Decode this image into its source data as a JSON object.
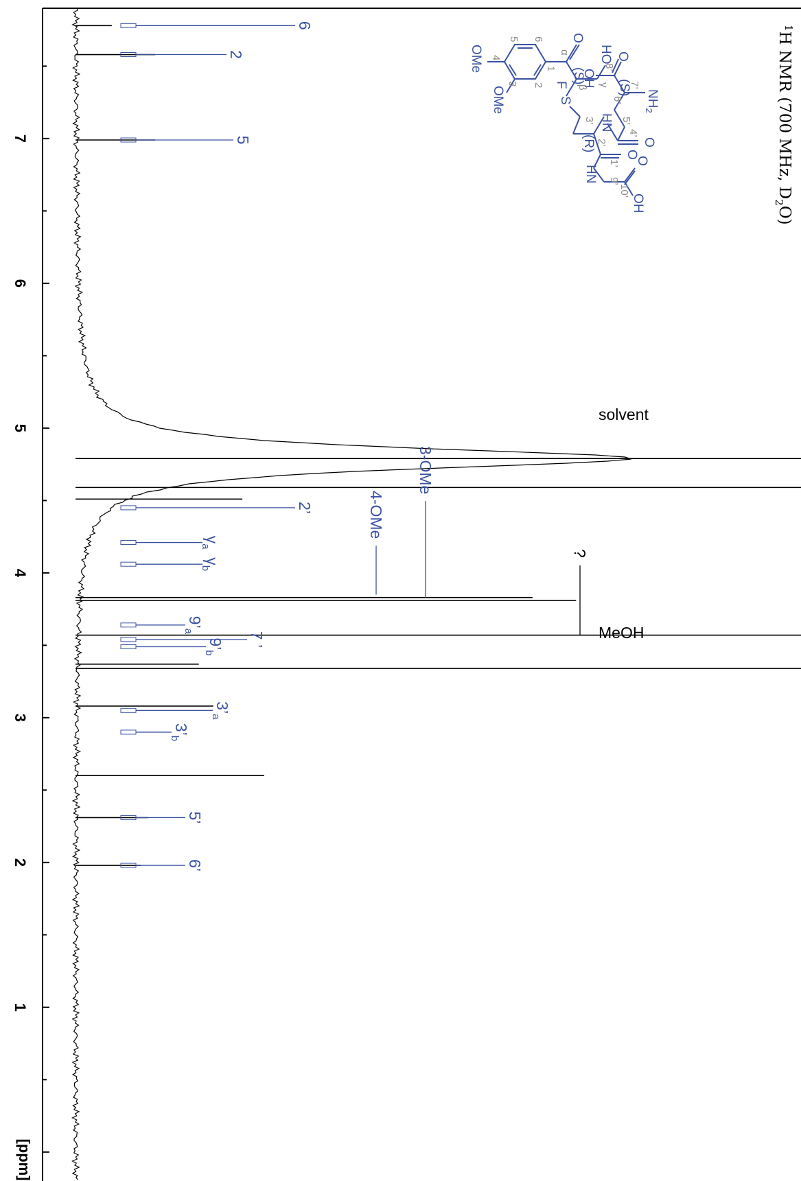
{
  "chart_data": {
    "type": "line",
    "title_main": "H NMR (700 MHz, D",
    "title_sup": "1",
    "title_sub": "2",
    "title_end": "O)",
    "x_unit_label": "[ppm]",
    "x_range": [
      7.9,
      -0.2
    ],
    "x_ticks": [
      "7",
      "6",
      "5",
      "4",
      "3",
      "2",
      "1"
    ],
    "x_tick_values": [
      7,
      6,
      5,
      4,
      3,
      2,
      1
    ],
    "spectrum_color": "#000000",
    "annotation_color": "#3a52a3",
    "solvent_peaks": [
      {
        "label": "solvent",
        "ppm": 4.79,
        "relative_height": 1.0
      },
      {
        "label": "MeOH",
        "ppm": 3.34,
        "relative_height": 1.0
      }
    ],
    "peaks": [
      {
        "ppm": 7.78,
        "relative_height": 0.05
      },
      {
        "ppm": 7.58,
        "relative_height": 0.11
      },
      {
        "ppm": 6.99,
        "relative_height": 0.11
      },
      {
        "ppm": 4.59,
        "relative_height": 1.0
      },
      {
        "ppm": 4.51,
        "relative_height": 0.23
      },
      {
        "ppm": 3.83,
        "relative_height": 0.63
      },
      {
        "ppm": 3.81,
        "relative_height": 0.69
      },
      {
        "ppm": 3.57,
        "relative_height": 1.0
      },
      {
        "ppm": 3.37,
        "relative_height": 0.17
      },
      {
        "ppm": 3.08,
        "relative_height": 0.19
      },
      {
        "ppm": 2.6,
        "relative_height": 0.26
      },
      {
        "ppm": 2.31,
        "relative_height": 0.1
      },
      {
        "ppm": 1.98,
        "relative_height": 0.09
      }
    ],
    "assignments": [
      {
        "label": "6",
        "sub": "",
        "ppm": 7.78
      },
      {
        "label": "2",
        "sub": "",
        "ppm": 7.58
      },
      {
        "label": "5",
        "sub": "",
        "ppm": 6.99
      },
      {
        "label": "2’",
        "sub": "",
        "ppm": 4.45
      },
      {
        "label": "γ",
        "sub": "a",
        "ppm": 4.21
      },
      {
        "label": "γ",
        "sub": "b",
        "ppm": 4.06
      },
      {
        "label": "9’",
        "sub": "a",
        "ppm": 3.64
      },
      {
        "label": "7 ’",
        "sub": "",
        "ppm": 3.54
      },
      {
        "label": "9’",
        "sub": "b",
        "ppm": 3.49
      },
      {
        "label": "3’",
        "sub": "a",
        "ppm": 3.05
      },
      {
        "label": "3’",
        "sub": "b",
        "ppm": 2.9
      },
      {
        "label": "5’",
        "sub": "",
        "ppm": 2.31
      },
      {
        "label": "6’",
        "sub": "",
        "ppm": 1.98
      }
    ],
    "vertical_labels": [
      {
        "label": "3-OMe",
        "ppm": 3.83
      },
      {
        "label": "4-OMe",
        "ppm": 3.85
      },
      {
        "label": "?",
        "ppm": 3.57
      }
    ]
  },
  "structure": {
    "atoms": {
      "ho": "HO",
      "o_ketone": "O",
      "s_config": "(S)",
      "f": "F",
      "s_thio": "S",
      "r_config": "(R)",
      "hn_top": "HN",
      "o_acid_top": "O",
      "oh_top": "OH",
      "o_amide1": "O",
      "hn_mid": "HN",
      "o_amide2": "O",
      "s_config2": "(S)",
      "o_acid_bottom": "O",
      "oh_bottom": "OH",
      "nh2": "NH",
      "nh2_sub": "2",
      "ome_3": "OMe",
      "ome_4": "OMe"
    },
    "numbers": {
      "gamma": "γ",
      "beta": "β",
      "alpha": "α",
      "c1": "1",
      "c2": "2",
      "c3": "3",
      "c4": "4",
      "c5": "5",
      "c6": "6",
      "n1p": "1’",
      "n2p": "2’",
      "n3p": "3’",
      "n4p": "4’",
      "n5p": "5’",
      "n6p": "6’",
      "n7p": "7’",
      "n8p": "8’",
      "n9p": "9’",
      "n10p": "10’"
    }
  }
}
